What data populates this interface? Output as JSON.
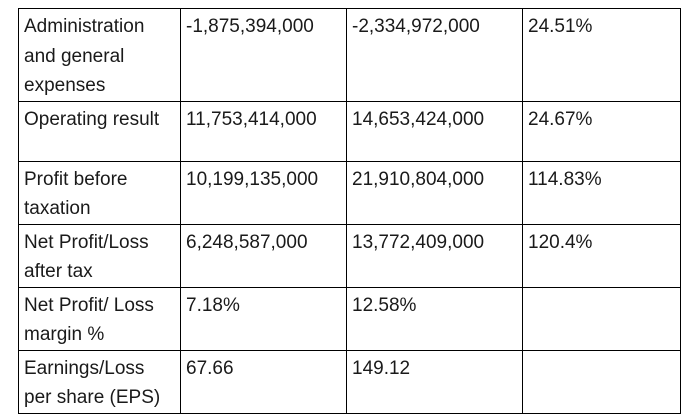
{
  "table": {
    "rows": [
      {
        "label": "Administration and general expenses",
        "col1": "-1,875,394,000",
        "col2": "-2,334,972,000",
        "col3": "24.51%"
      },
      {
        "label": "Operating result",
        "col1": "11,753,414,000",
        "col2": "14,653,424,000",
        "col3": "24.67%"
      },
      {
        "label": "Profit before taxation",
        "col1": "10,199,135,000",
        "col2": "21,910,804,000",
        "col3": "114.83%"
      },
      {
        "label": "Net Profit/Loss after tax",
        "col1": "6,248,587,000",
        "col2": "13,772,409,000",
        "col3": "120.4%"
      },
      {
        "label": "Net Profit/ Loss margin %",
        "col1": "7.18%",
        "col2": "12.58%",
        "col3": ""
      },
      {
        "label": "Earnings/Loss per share (EPS)",
        "col1": "67.66",
        "col2": "149.12",
        "col3": ""
      }
    ]
  }
}
